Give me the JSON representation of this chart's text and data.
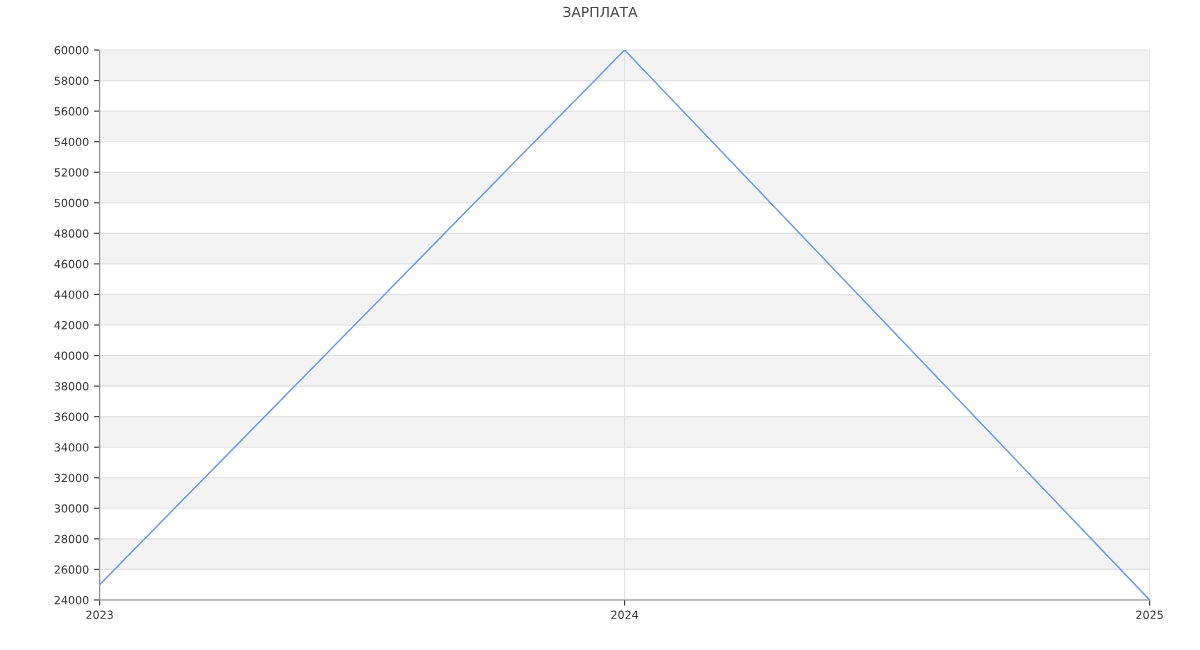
{
  "chart_data": {
    "type": "line",
    "title": "ЗАРПЛАТА",
    "categories": [
      "2023",
      "2024",
      "2025"
    ],
    "series": [
      {
        "color": "#6495ed",
        "values": [
          25000,
          60000,
          24000
        ]
      }
    ],
    "ylim": [
      24000,
      60000
    ],
    "yticks": [
      24000,
      26000,
      28000,
      30000,
      32000,
      34000,
      36000,
      38000,
      40000,
      42000,
      44000,
      46000,
      48000,
      50000,
      52000,
      54000,
      56000,
      58000,
      60000
    ],
    "grid": true,
    "marker": "none",
    "line_style": "solid"
  }
}
